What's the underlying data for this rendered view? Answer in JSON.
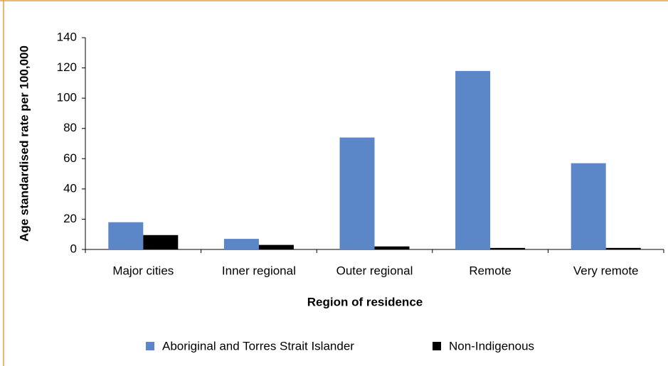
{
  "chart_data": {
    "type": "bar",
    "x_label": "Region of residence",
    "y_label": "Age standardised rate per 100,000",
    "categories": [
      "Major cities",
      "Inner regional",
      "Outer regional",
      "Remote",
      "Very remote"
    ],
    "series": [
      {
        "name": "Aboriginal and Torres Strait Islander",
        "color": "#5b86c8",
        "values": [
          18,
          7,
          74,
          118,
          57
        ]
      },
      {
        "name": "Non-Indigenous",
        "color": "#000000",
        "values": [
          9.5,
          3,
          2,
          1,
          1
        ]
      }
    ],
    "ylim": [
      0,
      140
    ],
    "yticks": [
      0,
      20,
      40,
      60,
      80,
      100,
      120,
      140
    ],
    "legend": "bottom"
  }
}
